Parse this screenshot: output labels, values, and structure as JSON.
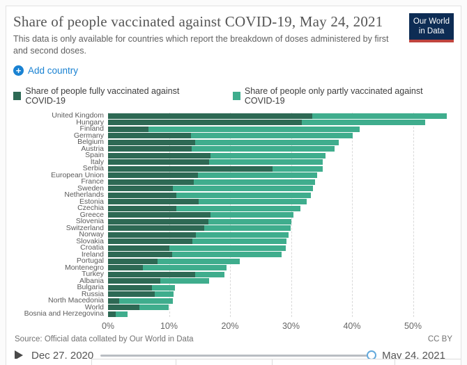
{
  "header": {
    "title": "Share of people vaccinated against COVID-19, May 24, 2021",
    "subtitle": "This data is only available for countries which report the breakdown of doses administered by first and second doses.",
    "logo_line1": "Our World",
    "logo_line2": "in Data",
    "add_country_label": "Add country",
    "plus_glyph": "+"
  },
  "colors": {
    "fully": "#2d6954",
    "partly": "#3fad8d",
    "accent_blue": "#1a82d2",
    "logo_navy": "#0d2c54",
    "logo_red": "#c0443e"
  },
  "legend": {
    "items": [
      {
        "label": "Share of people fully vaccinated against COVID-19",
        "color": "#2d6954"
      },
      {
        "label": "Share of people only partly vaccinated against COVID-19",
        "color": "#3fad8d"
      }
    ]
  },
  "chart_data": {
    "type": "bar",
    "orientation": "horizontal",
    "stacked": true,
    "title": "Share of people vaccinated against COVID-19, May 24, 2021",
    "xlabel": "",
    "ylabel": "",
    "xlim": [
      0,
      59
    ],
    "x_ticks": [
      "0%",
      "10%",
      "20%",
      "30%",
      "40%",
      "50%"
    ],
    "x_tick_values": [
      0,
      10,
      20,
      30,
      40,
      50
    ],
    "grid": "vertical-dashed",
    "legend_position": "top",
    "categories": [
      "United Kingdom",
      "Hungary",
      "Finland",
      "Germany",
      "Belgium",
      "Austria",
      "Spain",
      "Italy",
      "Serbia",
      "European Union",
      "France",
      "Sweden",
      "Netherlands",
      "Estonia",
      "Czechia",
      "Greece",
      "Slovenia",
      "Switzerland",
      "Norway",
      "Slovakia",
      "Croatia",
      "Ireland",
      "Portugal",
      "Montenegro",
      "Turkey",
      "Albania",
      "Bulgaria",
      "Russia",
      "North Macedonia",
      "World",
      "Bosnia and Herzegovina"
    ],
    "series": [
      {
        "name": "Share of people fully vaccinated against COVID-19",
        "color": "#2d6954",
        "values": [
          33.5,
          31.8,
          6.6,
          13.6,
          14.3,
          13.7,
          16.8,
          16.6,
          27.0,
          14.7,
          14.1,
          10.6,
          11.2,
          14.9,
          11.2,
          16.8,
          16.4,
          15.8,
          14.4,
          13.8,
          10.0,
          10.5,
          8.1,
          5.7,
          14.3,
          8.6,
          7.2,
          7.6,
          1.8,
          5.1,
          1.2
        ]
      },
      {
        "name": "Share of people only partly vaccinated against COVID-19",
        "color": "#3fad8d",
        "values": [
          22.0,
          20.2,
          34.6,
          26.5,
          23.5,
          23.4,
          18.9,
          18.6,
          8.2,
          19.6,
          19.8,
          23.0,
          22.1,
          17.7,
          20.3,
          13.6,
          13.6,
          14.1,
          15.2,
          15.5,
          19.1,
          18.0,
          13.5,
          13.7,
          4.8,
          8.0,
          3.8,
          3.1,
          8.8,
          4.8,
          2.0
        ]
      }
    ]
  },
  "footer": {
    "source": "Source: Official data collated by Our World in Data",
    "license": "CC BY"
  },
  "timeline": {
    "start_label": "Dec 27, 2020",
    "end_label": "May 24, 2021"
  }
}
